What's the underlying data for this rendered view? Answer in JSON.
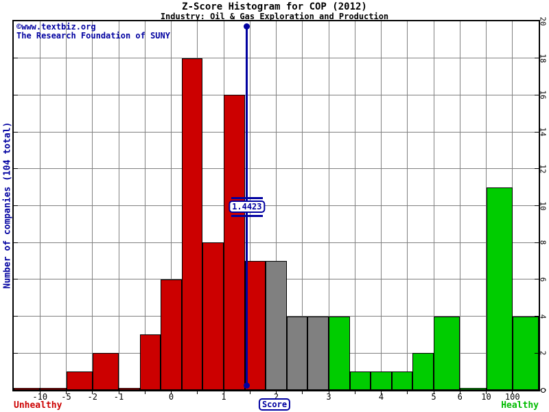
{
  "watermark": {
    "line1": "©www.textbiz.org",
    "line2": "The Research Foundation of SUNY"
  },
  "chart_data": {
    "type": "histogram",
    "title": "Z-Score Histogram for COP (2012)",
    "subtitle": "Industry: Oil & Gas Exploration and Production",
    "x_axis": {
      "label": "Score",
      "breakpoints": [
        -10,
        -5,
        -2,
        -1,
        -0.5,
        0,
        0.5,
        1,
        1.5,
        2,
        2.5,
        3,
        3.5,
        4,
        4.5,
        5,
        6,
        10,
        100
      ],
      "labeled_ticks": [
        -10,
        -5,
        -2,
        -1,
        0,
        1,
        2,
        3,
        4,
        5,
        6,
        10,
        100
      ]
    },
    "y_axis": {
      "label": "Number of companies (104 total)",
      "min": 0,
      "max": 20,
      "tick_step": 2
    },
    "total_companies": 104,
    "zones": {
      "distress": {
        "label": "Unhealthy",
        "color": "#cc0000"
      },
      "gray": {
        "color": "#808080"
      },
      "safe": {
        "label": "Healthy",
        "color": "#00cc00"
      }
    },
    "marker": {
      "value": 1.4423,
      "label": "1.4423",
      "color": "#0000a0"
    },
    "bins": [
      {
        "from": "-inf",
        "to": -10,
        "count": 0,
        "zone": "distress"
      },
      {
        "from": -10,
        "to": -5,
        "count": 0,
        "zone": "distress"
      },
      {
        "from": -5,
        "to": -2,
        "count": 1,
        "zone": "distress"
      },
      {
        "from": -2,
        "to": -1,
        "count": 2,
        "zone": "distress"
      },
      {
        "from": -1,
        "to": -0.6,
        "count": 0,
        "zone": "distress"
      },
      {
        "from": -0.6,
        "to": -0.2,
        "count": 3,
        "zone": "distress"
      },
      {
        "from": -0.2,
        "to": 0.2,
        "count": 6,
        "zone": "distress"
      },
      {
        "from": 0.2,
        "to": 0.6,
        "count": 18,
        "zone": "distress"
      },
      {
        "from": 0.6,
        "to": 1,
        "count": 8,
        "zone": "distress"
      },
      {
        "from": 1,
        "to": 1.4,
        "count": 16,
        "zone": "distress"
      },
      {
        "from": 1.4,
        "to": 1.8,
        "count": 7,
        "zone": "distress"
      },
      {
        "from": 1.8,
        "to": 2.2,
        "count": 7,
        "zone": "gray"
      },
      {
        "from": 2.2,
        "to": 2.6,
        "count": 4,
        "zone": "gray"
      },
      {
        "from": 2.6,
        "to": 3,
        "count": 4,
        "zone": "gray"
      },
      {
        "from": 3,
        "to": 3.4,
        "count": 4,
        "zone": "safe"
      },
      {
        "from": 3.4,
        "to": 3.8,
        "count": 1,
        "zone": "safe"
      },
      {
        "from": 3.8,
        "to": 4.2,
        "count": 1,
        "zone": "safe"
      },
      {
        "from": 4.2,
        "to": 4.6,
        "count": 1,
        "zone": "safe"
      },
      {
        "from": 4.6,
        "to": 5,
        "count": 2,
        "zone": "safe"
      },
      {
        "from": 5,
        "to": 6,
        "count": 4,
        "zone": "safe"
      },
      {
        "from": 6,
        "to": 10,
        "count": 0,
        "zone": "safe"
      },
      {
        "from": 10,
        "to": 100,
        "count": 11,
        "zone": "safe"
      },
      {
        "from": 100,
        "to": "inf",
        "count": 4,
        "zone": "safe"
      }
    ],
    "axis_end_marker": "circle"
  }
}
